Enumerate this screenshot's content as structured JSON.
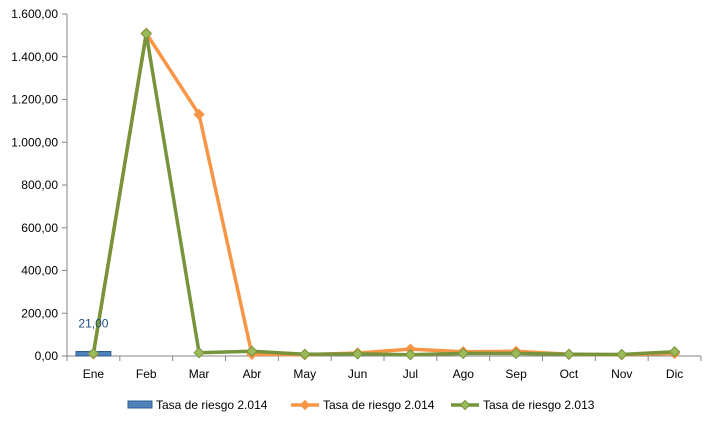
{
  "chart_data": {
    "type": "line",
    "title": "",
    "xlabel": "",
    "ylabel": "",
    "categories": [
      "Ene",
      "Feb",
      "Mar",
      "Abr",
      "May",
      "Jun",
      "Jul",
      "Ago",
      "Sep",
      "Oct",
      "Nov",
      "Dic"
    ],
    "ylim": [
      0,
      1600
    ],
    "yticks": [
      "0,00",
      "200,00",
      "400,00",
      "600,00",
      "800,00",
      "1.000,00",
      "1.200,00",
      "1.400,00",
      "1.600,00"
    ],
    "grid": false,
    "legend_position": "bottom",
    "series": [
      {
        "name": "Tasa de riesgo 2.014",
        "kind": "bar",
        "color": "#4f81bd",
        "values": [
          21,
          null,
          null,
          null,
          null,
          null,
          null,
          null,
          null,
          null,
          null,
          null
        ],
        "data_labels": [
          "21,00",
          "",
          "",
          "",
          "",
          "",
          "",
          "",
          "",
          "",
          "",
          ""
        ]
      },
      {
        "name": "Tasa de riesgo 2.014",
        "kind": "line",
        "color": "#f79646",
        "values": [
          10,
          1510,
          1130,
          8,
          6,
          14,
          32,
          20,
          22,
          8,
          6,
          12
        ]
      },
      {
        "name": "Tasa de riesgo 2.013",
        "kind": "line",
        "color": "#77933c",
        "marker_color": "#9bbb59",
        "values": [
          12,
          1508,
          15,
          22,
          8,
          10,
          6,
          12,
          12,
          8,
          7,
          20
        ]
      }
    ]
  }
}
